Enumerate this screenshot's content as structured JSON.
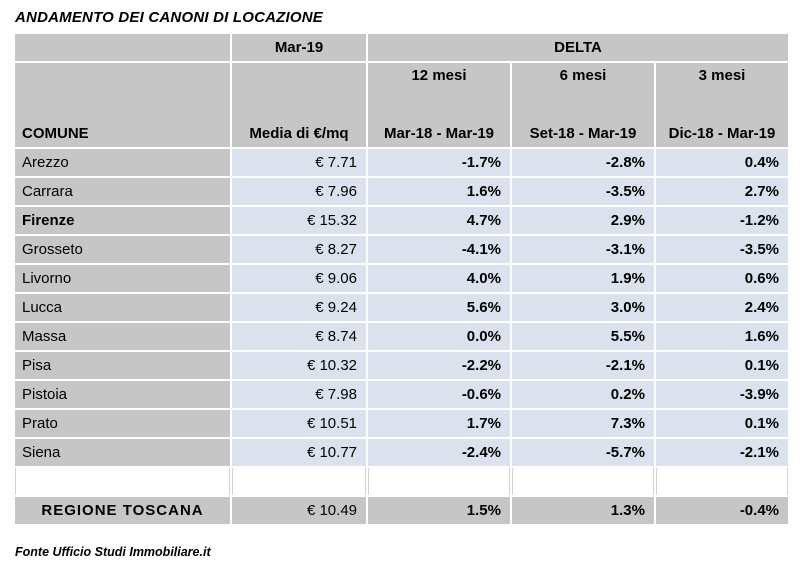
{
  "title": "ANDAMENTO DEI CANONI DI LOCAZIONE",
  "footer": "Fonte Ufficio Studi Immobiliare.it",
  "colors": {
    "header_bg": "#c6c6c6",
    "row_bg": "#dbe2ee",
    "text": "#000000",
    "page_bg": "#ffffff"
  },
  "table": {
    "period_header": "Mar-19",
    "delta_header": "DELTA",
    "comune_header": "COMUNE",
    "media_header": "Media di €/mq",
    "delta_columns": [
      {
        "label": "12 mesi",
        "range": "Mar-18 - Mar-19"
      },
      {
        "label": "6 mesi",
        "range": "Set-18 - Mar-19"
      },
      {
        "label": "3 mesi",
        "range": "Dic-18 - Mar-19"
      }
    ],
    "rows": [
      {
        "comune": "Arezzo",
        "media": "€ 7.71",
        "delta_12m": "-1.7%",
        "delta_6m": "-2.8%",
        "delta_3m": "0.4%",
        "bold": false
      },
      {
        "comune": "Carrara",
        "media": "€ 7.96",
        "delta_12m": "1.6%",
        "delta_6m": "-3.5%",
        "delta_3m": "2.7%",
        "bold": false
      },
      {
        "comune": "Firenze",
        "media": "€ 15.32",
        "delta_12m": "4.7%",
        "delta_6m": "2.9%",
        "delta_3m": "-1.2%",
        "bold": true
      },
      {
        "comune": "Grosseto",
        "media": "€ 8.27",
        "delta_12m": "-4.1%",
        "delta_6m": "-3.1%",
        "delta_3m": "-3.5%",
        "bold": false
      },
      {
        "comune": "Livorno",
        "media": "€ 9.06",
        "delta_12m": "4.0%",
        "delta_6m": "1.9%",
        "delta_3m": "0.6%",
        "bold": false
      },
      {
        "comune": "Lucca",
        "media": "€ 9.24",
        "delta_12m": "5.6%",
        "delta_6m": "3.0%",
        "delta_3m": "2.4%",
        "bold": false
      },
      {
        "comune": "Massa",
        "media": "€ 8.74",
        "delta_12m": "0.0%",
        "delta_6m": "5.5%",
        "delta_3m": "1.6%",
        "bold": false
      },
      {
        "comune": "Pisa",
        "media": "€ 10.32",
        "delta_12m": "-2.2%",
        "delta_6m": "-2.1%",
        "delta_3m": "0.1%",
        "bold": false
      },
      {
        "comune": "Pistoia",
        "media": "€ 7.98",
        "delta_12m": "-0.6%",
        "delta_6m": "0.2%",
        "delta_3m": "-3.9%",
        "bold": false
      },
      {
        "comune": "Prato",
        "media": "€ 10.51",
        "delta_12m": "1.7%",
        "delta_6m": "7.3%",
        "delta_3m": "0.1%",
        "bold": false
      },
      {
        "comune": "Siena",
        "media": "€ 10.77",
        "delta_12m": "-2.4%",
        "delta_6m": "-5.7%",
        "delta_3m": "-2.1%",
        "bold": false
      }
    ],
    "total_row": {
      "comune": "REGIONE TOSCANA",
      "media": "€ 10.49",
      "delta_12m": "1.5%",
      "delta_6m": "1.3%",
      "delta_3m": "-0.4%"
    }
  },
  "chart_data": {
    "type": "table",
    "title": "ANDAMENTO DEI CANONI DI LOCAZIONE",
    "columns": [
      "COMUNE",
      "Mar-19 Media di €/mq",
      "DELTA 12 mesi (Mar-18 - Mar-19) %",
      "DELTA 6 mesi (Set-18 - Mar-19) %",
      "DELTA 3 mesi (Dic-18 - Mar-19) %"
    ],
    "rows": [
      [
        "Arezzo",
        7.71,
        -1.7,
        -2.8,
        0.4
      ],
      [
        "Carrara",
        7.96,
        1.6,
        -3.5,
        2.7
      ],
      [
        "Firenze",
        15.32,
        4.7,
        2.9,
        -1.2
      ],
      [
        "Grosseto",
        8.27,
        -4.1,
        -3.1,
        -3.5
      ],
      [
        "Livorno",
        9.06,
        4.0,
        1.9,
        0.6
      ],
      [
        "Lucca",
        9.24,
        5.6,
        3.0,
        2.4
      ],
      [
        "Massa",
        8.74,
        0.0,
        5.5,
        1.6
      ],
      [
        "Pisa",
        10.32,
        -2.2,
        -2.1,
        0.1
      ],
      [
        "Pistoia",
        7.98,
        -0.6,
        0.2,
        -3.9
      ],
      [
        "Prato",
        10.51,
        1.7,
        7.3,
        0.1
      ],
      [
        "Siena",
        10.77,
        -2.4,
        -5.7,
        -2.1
      ],
      [
        "REGIONE TOSCANA",
        10.49,
        1.5,
        1.3,
        -0.4
      ]
    ],
    "units": {
      "media": "€/mq",
      "delta": "%"
    },
    "source": "Fonte Ufficio Studi Immobiliare.it"
  }
}
